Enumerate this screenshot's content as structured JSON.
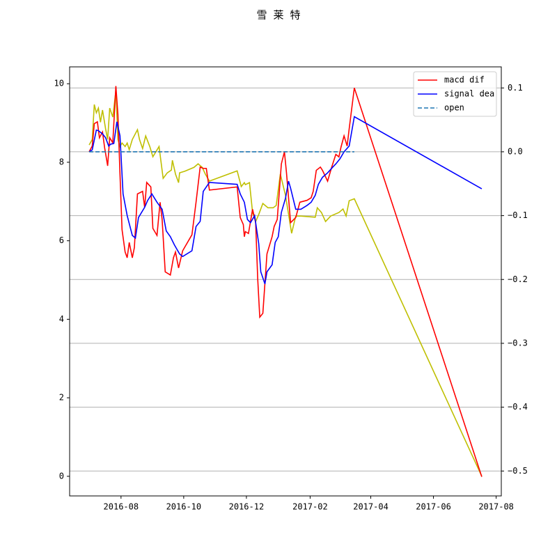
{
  "chart_data": {
    "type": "line",
    "title": "雪 莱 特",
    "xlim": [
      "2016-06-12",
      "2017-08-06"
    ],
    "xticks": [
      "2016-08",
      "2016-10",
      "2016-12",
      "2017-02",
      "2017-04",
      "2017-06",
      "2017-08"
    ],
    "ylim": [
      -0.5,
      10.43
    ],
    "yticks": [
      0,
      2,
      4,
      6,
      8,
      10
    ],
    "y2lim": [
      -0.539,
      0.133
    ],
    "y2ticks": [
      {
        "value": -0.5,
        "label": "−0.5"
      },
      {
        "value": -0.4,
        "label": "−0.4"
      },
      {
        "value": -0.3,
        "label": "−0.3"
      },
      {
        "value": -0.2,
        "label": "−0.2"
      },
      {
        "value": -0.1,
        "label": "−0.1"
      },
      {
        "value": 0,
        "label": "0.0"
      },
      0.1
    ],
    "grid": "y2",
    "legend": "upper right",
    "series": [
      {
        "color": "#bfbf00",
        "axis": "y",
        "linestyle": "solid",
        "x": [
          "2016-07-01",
          "2016-07-04",
          "2016-07-06",
          "2016-07-08",
          "2016-07-10",
          "2016-07-12",
          "2016-07-14",
          "2016-07-17",
          "2016-07-19",
          "2016-07-21",
          "2016-07-24",
          "2016-07-27",
          "2016-07-29",
          "2016-07-31",
          "2016-08-02",
          "2016-08-05",
          "2016-08-07",
          "2016-08-09",
          "2016-08-12",
          "2016-08-17",
          "2016-08-19",
          "2016-08-22",
          "2016-08-25",
          "2016-08-29",
          "2016-09-01",
          "2016-09-07",
          "2016-09-11",
          "2016-09-15",
          "2016-09-19",
          "2016-09-20",
          "2016-09-23",
          "2016-09-26",
          "2016-09-27",
          "2016-10-02",
          "2016-10-11",
          "2016-10-15",
          "2016-10-19",
          "2016-10-22",
          "2016-10-26",
          "2016-11-22",
          "2016-11-26",
          "2016-11-29",
          "2016-11-30",
          "2016-12-04",
          "2016-12-07",
          "2016-12-10",
          "2016-12-13",
          "2016-12-17",
          "2016-12-22",
          "2016-12-27",
          "2016-12-30",
          "2017-01-03",
          "2017-01-08",
          "2017-01-14",
          "2017-01-18",
          "2017-01-23",
          "2017-02-06",
          "2017-02-08",
          "2017-02-12",
          "2017-02-16",
          "2017-02-21",
          "2017-03-01",
          "2017-03-05",
          "2017-03-08",
          "2017-03-11",
          "2017-03-16",
          "2017-07-18"
        ],
        "values": [
          8.44,
          8.58,
          9.47,
          9.26,
          9.38,
          9.02,
          9.33,
          8.85,
          8.58,
          9.38,
          9.15,
          9.82,
          8.58,
          8.4,
          8.49,
          8.4,
          8.49,
          8.32,
          8.58,
          8.83,
          8.58,
          8.35,
          8.67,
          8.4,
          8.14,
          8.4,
          7.59,
          7.73,
          7.8,
          8.05,
          7.7,
          7.48,
          7.73,
          7.77,
          7.87,
          7.96,
          7.87,
          7.7,
          7.52,
          7.78,
          7.38,
          7.48,
          7.43,
          7.48,
          6.72,
          6.49,
          6.67,
          6.95,
          6.84,
          6.84,
          6.9,
          7.7,
          7.16,
          6.19,
          6.63,
          6.63,
          6.6,
          6.84,
          6.72,
          6.49,
          6.63,
          6.72,
          6.81,
          6.63,
          7.02,
          7.07,
          0.0
        ]
      },
      {
        "name": "macd dif",
        "color": "#ff0000",
        "axis": "y2",
        "linestyle": "solid",
        "x": [
          "2016-07-01",
          "2016-07-04",
          "2016-07-06",
          "2016-07-09",
          "2016-07-11",
          "2016-07-14",
          "2016-07-16",
          "2016-07-19",
          "2016-07-21",
          "2016-07-24",
          "2016-07-27",
          "2016-07-29",
          "2016-07-31",
          "2016-08-02",
          "2016-08-05",
          "2016-08-07",
          "2016-08-09",
          "2016-08-12",
          "2016-08-14",
          "2016-08-17",
          "2016-08-22",
          "2016-08-24",
          "2016-08-26",
          "2016-08-30",
          "2016-09-01",
          "2016-09-05",
          "2016-09-08",
          "2016-09-10",
          "2016-09-13",
          "2016-09-18",
          "2016-09-21",
          "2016-09-23",
          "2016-09-26",
          "2016-09-30",
          "2016-10-09",
          "2016-10-13",
          "2016-10-17",
          "2016-10-20",
          "2016-10-23",
          "2016-10-26",
          "2016-11-22",
          "2016-11-25",
          "2016-11-28",
          "2016-11-29",
          "2016-11-30",
          "2016-12-03",
          "2016-12-07",
          "2016-12-10",
          "2016-12-12",
          "2016-12-14",
          "2016-12-17",
          "2016-12-21",
          "2016-12-26",
          "2016-12-28",
          "2016-12-31",
          "2017-01-04",
          "2017-01-07",
          "2017-01-09",
          "2017-01-13",
          "2017-01-18",
          "2017-01-22",
          "2017-01-29",
          "2017-02-02",
          "2017-02-04",
          "2017-02-07",
          "2017-02-11",
          "2017-02-13",
          "2017-02-18",
          "2017-02-22",
          "2017-02-26",
          "2017-03-01",
          "2017-03-03",
          "2017-03-06",
          "2017-03-09",
          "2017-03-11",
          "2017-03-16",
          "2017-07-18"
        ],
        "values": [
          0,
          0.009,
          0.044,
          0.047,
          0.022,
          0.031,
          0.007,
          -0.022,
          0.022,
          0.014,
          0.103,
          0.058,
          -0.035,
          -0.122,
          -0.157,
          -0.166,
          -0.142,
          -0.166,
          -0.15,
          -0.066,
          -0.062,
          -0.087,
          -0.048,
          -0.055,
          -0.12,
          -0.131,
          -0.079,
          -0.106,
          -0.188,
          -0.193,
          -0.166,
          -0.157,
          -0.182,
          -0.155,
          -0.13,
          -0.079,
          -0.024,
          -0.026,
          -0.026,
          -0.06,
          -0.055,
          -0.103,
          -0.114,
          -0.133,
          -0.125,
          -0.128,
          -0.09,
          -0.111,
          -0.199,
          -0.259,
          -0.253,
          -0.16,
          -0.133,
          -0.117,
          -0.106,
          -0.019,
          0.0,
          -0.033,
          -0.111,
          -0.103,
          -0.079,
          -0.076,
          -0.072,
          -0.062,
          -0.029,
          -0.024,
          -0.029,
          -0.046,
          -0.024,
          -0.004,
          -0.008,
          0.007,
          0.025,
          0.009,
          0.036,
          0.1,
          -0.509
        ]
      },
      {
        "name": "signal dea",
        "color": "#0000ff",
        "axis": "y2",
        "linestyle": "solid",
        "x": [
          "2016-07-01",
          "2016-07-04",
          "2016-07-08",
          "2016-07-10",
          "2016-07-14",
          "2016-07-17",
          "2016-07-20",
          "2016-07-22",
          "2016-07-25",
          "2016-07-28",
          "2016-07-31",
          "2016-08-03",
          "2016-08-07",
          "2016-08-12",
          "2016-08-15",
          "2016-08-18",
          "2016-08-24",
          "2016-08-27",
          "2016-08-31",
          "2016-09-05",
          "2016-09-10",
          "2016-09-14",
          "2016-09-18",
          "2016-09-22",
          "2016-09-27",
          "2016-09-30",
          "2016-10-09",
          "2016-10-13",
          "2016-10-17",
          "2016-10-20",
          "2016-10-26",
          "2016-11-22",
          "2016-11-25",
          "2016-11-29",
          "2016-12-02",
          "2016-12-05",
          "2016-12-09",
          "2016-12-13",
          "2016-12-15",
          "2016-12-19",
          "2016-12-21",
          "2016-12-26",
          "2016-12-29",
          "2017-01-01",
          "2017-01-04",
          "2017-01-08",
          "2017-01-11",
          "2017-01-13",
          "2017-01-18",
          "2017-01-23",
          "2017-01-29",
          "2017-02-02",
          "2017-02-06",
          "2017-02-09",
          "2017-02-13",
          "2017-02-18",
          "2017-02-23",
          "2017-02-26",
          "2017-03-02",
          "2017-03-06",
          "2017-03-11",
          "2017-03-16",
          "2017-07-18"
        ],
        "values": [
          0,
          0.003,
          0.034,
          0.033,
          0.028,
          0.022,
          0.009,
          0.012,
          0.013,
          0.047,
          0.025,
          -0.066,
          -0.1,
          -0.131,
          -0.135,
          -0.103,
          -0.087,
          -0.076,
          -0.066,
          -0.079,
          -0.09,
          -0.124,
          -0.133,
          -0.146,
          -0.16,
          -0.164,
          -0.155,
          -0.117,
          -0.109,
          -0.062,
          -0.048,
          -0.051,
          -0.066,
          -0.079,
          -0.106,
          -0.111,
          -0.1,
          -0.144,
          -0.188,
          -0.207,
          -0.188,
          -0.177,
          -0.142,
          -0.133,
          -0.095,
          -0.073,
          -0.046,
          -0.057,
          -0.09,
          -0.09,
          -0.084,
          -0.079,
          -0.068,
          -0.051,
          -0.04,
          -0.033,
          -0.024,
          -0.019,
          -0.011,
          0.0,
          0.009,
          0.055,
          -0.058
        ]
      },
      {
        "name": "open",
        "color": "#1f77b4",
        "axis": "y2",
        "linestyle": "dashed",
        "x": [
          "2016-07-01",
          "2017-03-16"
        ],
        "values": [
          0,
          0
        ]
      }
    ]
  }
}
